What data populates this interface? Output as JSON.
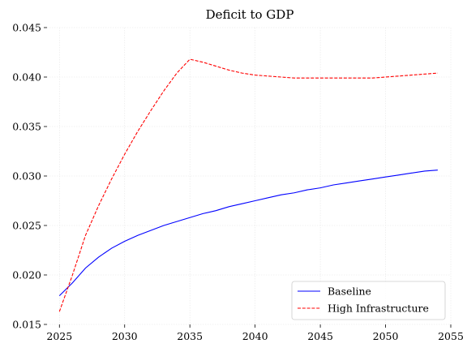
{
  "chart_data": {
    "type": "line",
    "title": "Deficit to GDP",
    "xlabel": "",
    "ylabel": "",
    "xlim": [
      2024.05,
      2055.0
    ],
    "ylim": [
      0.015,
      0.045
    ],
    "xticks": [
      2025,
      2030,
      2035,
      2040,
      2045,
      2050,
      2055
    ],
    "yticks": [
      0.015,
      0.02,
      0.025,
      0.03,
      0.035,
      0.04,
      0.045
    ],
    "xtick_labels": [
      "2025",
      "2030",
      "2035",
      "2040",
      "2045",
      "2050",
      "2055"
    ],
    "ytick_labels": [
      "0.015",
      "0.020",
      "0.025",
      "0.030",
      "0.035",
      "0.040",
      "0.045"
    ],
    "grid": true,
    "legend_position": "bottom-right",
    "x": [
      2025,
      2026,
      2027,
      2028,
      2029,
      2030,
      2031,
      2032,
      2033,
      2034,
      2035,
      2036,
      2037,
      2038,
      2039,
      2040,
      2041,
      2042,
      2043,
      2044,
      2045,
      2046,
      2047,
      2048,
      2049,
      2050,
      2051,
      2052,
      2053,
      2054
    ],
    "series": [
      {
        "name": "Baseline",
        "color": "#0000ff",
        "style": "solid",
        "values": [
          0.0179,
          0.0192,
          0.0207,
          0.0218,
          0.0227,
          0.0234,
          0.024,
          0.0245,
          0.025,
          0.0254,
          0.0258,
          0.0262,
          0.0265,
          0.0269,
          0.0272,
          0.0275,
          0.0278,
          0.0281,
          0.0283,
          0.0286,
          0.0288,
          0.0291,
          0.0293,
          0.0295,
          0.0297,
          0.0299,
          0.0301,
          0.0303,
          0.0305,
          0.0306
        ]
      },
      {
        "name": "High Infrastructure",
        "color": "#ff0000",
        "style": "dashed",
        "values": [
          0.0163,
          0.02,
          0.024,
          0.027,
          0.0297,
          0.0322,
          0.0345,
          0.0366,
          0.0386,
          0.0404,
          0.0418,
          0.0415,
          0.0411,
          0.0407,
          0.0404,
          0.0402,
          0.0401,
          0.04,
          0.0399,
          0.0399,
          0.0399,
          0.0399,
          0.0399,
          0.0399,
          0.0399,
          0.04,
          0.0401,
          0.0402,
          0.0403,
          0.0404
        ]
      }
    ],
    "colors": {
      "grid": "#e6e6e6",
      "tick": "#000000"
    }
  }
}
